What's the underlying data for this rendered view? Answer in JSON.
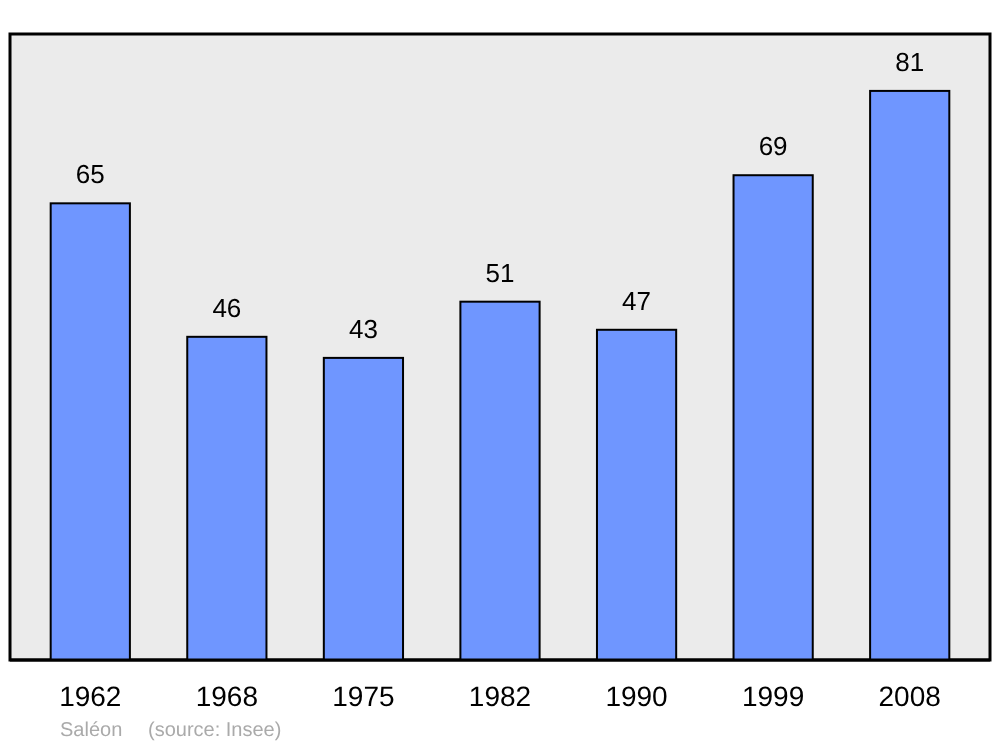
{
  "chart_data": {
    "type": "bar",
    "categories": [
      "1962",
      "1968",
      "1975",
      "1982",
      "1990",
      "1999",
      "2008"
    ],
    "values": [
      65,
      46,
      43,
      51,
      47,
      69,
      81
    ],
    "color": "#6f96ff",
    "data_labels": true,
    "annotations": [
      "Saléon",
      "(source: Insee)"
    ]
  }
}
